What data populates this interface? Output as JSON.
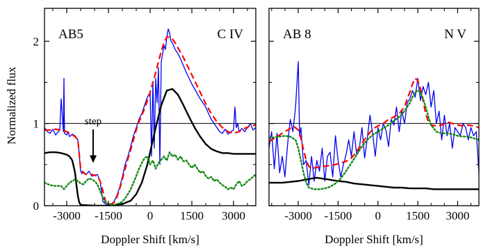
{
  "figure": {
    "ylabel": "Normalized flux",
    "xlabel": "Doppler Shift [km/s]"
  },
  "chart_data": [
    {
      "type": "line",
      "star_label": "AB5",
      "ion_label": "C IV",
      "xlabel": "Doppler Shift [km/s]",
      "ylabel": "Normalized flux",
      "xlim": [
        -3800,
        3800
      ],
      "ylim": [
        0,
        2.4
      ],
      "xticks": [
        -3000,
        -1500,
        0,
        1500,
        3000
      ],
      "xtick_labels": [
        "-3000",
        "-1500",
        "0",
        "1500",
        "3000"
      ],
      "yticks": [
        0,
        1,
        2
      ],
      "ytick_labels": [
        "0",
        "1",
        "2"
      ],
      "reference_line": 1.0,
      "annotation": {
        "text": "step",
        "x": -2050,
        "y": 0.97,
        "arrow_to": [
          -2050,
          0.52
        ]
      },
      "series": [
        {
          "style": "observed",
          "color": "#0000ee",
          "width": 1.3,
          "dash": "",
          "x": [
            -3800,
            -3700,
            -3600,
            -3500,
            -3400,
            -3300,
            -3250,
            -3200,
            -3120,
            -3100,
            -3080,
            -3000,
            -2950,
            -2900,
            -2800,
            -2700,
            -2600,
            -2550,
            -2500,
            -2450,
            -2400,
            -2300,
            -2200,
            -2100,
            -2000,
            -1900,
            -1800,
            -1750,
            -1700,
            -1600,
            -1500,
            -1400,
            -1300,
            -1200,
            -1100,
            -1000,
            -900,
            -800,
            -700,
            -600,
            -500,
            -400,
            -300,
            -200,
            -100,
            0,
            50,
            100,
            150,
            200,
            250,
            300,
            350,
            400,
            450,
            500,
            550,
            600,
            650,
            700,
            750,
            800,
            900,
            1000,
            1100,
            1200,
            1300,
            1400,
            1500,
            1600,
            1700,
            1800,
            1900,
            2000,
            2100,
            2200,
            2300,
            2400,
            2500,
            2600,
            2700,
            2800,
            2900,
            3000,
            3050,
            3100,
            3150,
            3200,
            3300,
            3400,
            3500,
            3600,
            3700,
            3800
          ],
          "y": [
            0.95,
            0.9,
            0.88,
            0.93,
            0.86,
            0.9,
            0.92,
            1.3,
            0.9,
            1.55,
            0.88,
            0.86,
            0.9,
            0.84,
            0.87,
            0.85,
            0.8,
            0.62,
            0.42,
            0.39,
            0.41,
            0.38,
            0.42,
            0.36,
            0.37,
            0.38,
            0.3,
            0.18,
            0.05,
            0.02,
            0.01,
            0.02,
            0.05,
            0.12,
            0.22,
            0.35,
            0.5,
            0.6,
            0.72,
            0.85,
            0.95,
            1.05,
            1.12,
            1.22,
            1.32,
            1.38,
            0.6,
            1.5,
            0.7,
            1.55,
            1.25,
            1.68,
            0.5,
            1.75,
            1.85,
            1.95,
            1.9,
            2.05,
            2.15,
            2.1,
            2.0,
            1.98,
            1.9,
            1.85,
            1.78,
            1.7,
            1.62,
            1.55,
            1.48,
            1.42,
            1.36,
            1.3,
            1.25,
            1.2,
            1.12,
            1.05,
            1.0,
            0.95,
            0.9,
            0.88,
            0.93,
            0.87,
            0.9,
            0.92,
            1.2,
            0.95,
            1.0,
            0.9,
            0.94,
            0.9,
            0.95,
            1.0,
            0.92,
            0.95
          ]
        },
        {
          "style": "model-total",
          "color": "#ff0000",
          "width": 2.2,
          "dash": "9,5",
          "x": [
            -3800,
            -3600,
            -3400,
            -3200,
            -3000,
            -2900,
            -2800,
            -2700,
            -2600,
            -2500,
            -2400,
            -2300,
            -2200,
            -2100,
            -2000,
            -1900,
            -1800,
            -1700,
            -1600,
            -1500,
            -1400,
            -1300,
            -1200,
            -1100,
            -1000,
            -900,
            -800,
            -700,
            -600,
            -500,
            -400,
            -300,
            -200,
            -100,
            0,
            100,
            200,
            300,
            400,
            500,
            600,
            700,
            800,
            900,
            1000,
            1200,
            1400,
            1600,
            1800,
            2000,
            2200,
            2400,
            2600,
            2800,
            3000,
            3200,
            3400,
            3600,
            3800
          ],
          "y": [
            0.92,
            0.92,
            0.93,
            0.92,
            0.9,
            0.88,
            0.86,
            0.84,
            0.8,
            0.45,
            0.4,
            0.38,
            0.38,
            0.38,
            0.37,
            0.36,
            0.3,
            0.18,
            0.05,
            0.02,
            0.02,
            0.04,
            0.1,
            0.2,
            0.32,
            0.45,
            0.57,
            0.68,
            0.8,
            0.92,
            1.02,
            1.1,
            1.18,
            1.28,
            1.38,
            1.5,
            1.62,
            1.75,
            1.88,
            1.98,
            2.05,
            2.05,
            2.03,
            1.98,
            1.92,
            1.8,
            1.66,
            1.52,
            1.38,
            1.24,
            1.12,
            1.02,
            0.95,
            0.9,
            0.88,
            0.9,
            0.94,
            0.97,
            0.98
          ]
        },
        {
          "style": "model-component",
          "color": "#000000",
          "width": 2.4,
          "dash": "",
          "x": [
            -3800,
            -3600,
            -3400,
            -3200,
            -3000,
            -2900,
            -2800,
            -2700,
            -2650,
            -2600,
            -2550,
            -2500,
            -2000,
            -1500,
            -1000,
            -700,
            -500,
            -300,
            -100,
            0,
            200,
            400,
            600,
            800,
            1000,
            1200,
            1400,
            1600,
            1800,
            2000,
            2200,
            2400,
            2600,
            2800,
            3000,
            3200,
            3400,
            3600,
            3800
          ],
          "y": [
            0.64,
            0.65,
            0.65,
            0.64,
            0.62,
            0.6,
            0.55,
            0.4,
            0.25,
            0.12,
            0.04,
            0.01,
            0.0,
            0.0,
            0.02,
            0.06,
            0.14,
            0.28,
            0.5,
            0.65,
            0.95,
            1.22,
            1.4,
            1.42,
            1.35,
            1.22,
            1.08,
            0.95,
            0.84,
            0.75,
            0.69,
            0.66,
            0.64,
            0.64,
            0.63,
            0.63,
            0.63,
            0.63,
            0.63
          ]
        },
        {
          "style": "model-component-2",
          "color": "#118811",
          "width": 2.4,
          "dash": "2,3",
          "x": [
            -3800,
            -3600,
            -3400,
            -3200,
            -3100,
            -3000,
            -2900,
            -2800,
            -2700,
            -2600,
            -2500,
            -2400,
            -2300,
            -2200,
            -2100,
            -2000,
            -1900,
            -1800,
            -1700,
            -1600,
            -1500,
            -1400,
            -1300,
            -1200,
            -1100,
            -1000,
            -900,
            -800,
            -700,
            -600,
            -500,
            -400,
            -300,
            -200,
            -100,
            0,
            100,
            200,
            300,
            400,
            500,
            600,
            700,
            800,
            900,
            1000,
            1100,
            1200,
            1300,
            1400,
            1500,
            1600,
            1700,
            1800,
            1900,
            2000,
            2100,
            2200,
            2300,
            2400,
            2500,
            2600,
            2700,
            2800,
            2900,
            3000,
            3100,
            3200,
            3300,
            3400,
            3500,
            3600,
            3700,
            3800
          ],
          "y": [
            0.28,
            0.25,
            0.24,
            0.24,
            0.2,
            0.24,
            0.28,
            0.3,
            0.32,
            0.3,
            0.27,
            0.26,
            0.3,
            0.33,
            0.32,
            0.3,
            0.26,
            0.18,
            0.1,
            0.04,
            0.02,
            0.01,
            0.01,
            0.02,
            0.03,
            0.05,
            0.09,
            0.14,
            0.2,
            0.28,
            0.36,
            0.45,
            0.52,
            0.58,
            0.6,
            0.5,
            0.55,
            0.45,
            0.52,
            0.56,
            0.6,
            0.55,
            0.65,
            0.6,
            0.62,
            0.56,
            0.6,
            0.54,
            0.55,
            0.5,
            0.46,
            0.5,
            0.45,
            0.4,
            0.42,
            0.36,
            0.33,
            0.35,
            0.3,
            0.32,
            0.28,
            0.25,
            0.23,
            0.2,
            0.22,
            0.2,
            0.26,
            0.3,
            0.24,
            0.26,
            0.3,
            0.32,
            0.35,
            0.38
          ]
        }
      ]
    },
    {
      "type": "line",
      "star_label": "AB 8",
      "ion_label": "N V",
      "xlabel": "Doppler Shift [km/s]",
      "ylabel": "",
      "xlim": [
        -4100,
        3800
      ],
      "ylim": [
        0,
        2.4
      ],
      "xticks": [
        -3000,
        -1500,
        0,
        1500,
        3000
      ],
      "xtick_labels": [
        "-3000",
        "-1500",
        "0",
        "1500",
        "3000"
      ],
      "yticks": [
        0,
        1,
        2
      ],
      "ytick_labels": [],
      "reference_line": 1.0,
      "series": [
        {
          "style": "observed",
          "color": "#0000ee",
          "width": 1.3,
          "dash": "",
          "x": [
            -4100,
            -4000,
            -3900,
            -3800,
            -3700,
            -3600,
            -3500,
            -3400,
            -3300,
            -3200,
            -3100,
            -3000,
            -2950,
            -2900,
            -2800,
            -2700,
            -2600,
            -2500,
            -2400,
            -2300,
            -2200,
            -2100,
            -2000,
            -1900,
            -1800,
            -1700,
            -1600,
            -1500,
            -1400,
            -1300,
            -1200,
            -1100,
            -1000,
            -900,
            -800,
            -700,
            -600,
            -500,
            -400,
            -300,
            -200,
            -100,
            0,
            100,
            200,
            300,
            400,
            500,
            600,
            700,
            800,
            900,
            1000,
            1100,
            1200,
            1300,
            1400,
            1500,
            1600,
            1700,
            1800,
            1900,
            2000,
            2100,
            2200,
            2300,
            2400,
            2500,
            2600,
            2700,
            2800,
            2900,
            3000,
            3100,
            3200,
            3300,
            3400,
            3500,
            3600,
            3700,
            3800
          ],
          "y": [
            0.7,
            0.9,
            0.45,
            0.88,
            0.4,
            0.6,
            0.35,
            0.75,
            1.05,
            0.9,
            1.2,
            1.75,
            0.85,
            0.95,
            0.5,
            0.55,
            0.25,
            0.6,
            0.3,
            0.55,
            0.42,
            0.7,
            0.3,
            0.6,
            0.65,
            0.35,
            0.85,
            0.55,
            0.35,
            0.5,
            0.62,
            0.8,
            0.6,
            0.9,
            0.62,
            0.7,
            0.95,
            0.58,
            0.82,
            1.1,
            0.88,
            0.6,
            0.95,
            0.8,
            1.0,
            0.92,
            0.72,
            1.05,
            0.98,
            1.2,
            0.9,
            1.15,
            1.0,
            1.25,
            1.3,
            1.4,
            1.32,
            1.55,
            1.28,
            1.45,
            1.35,
            1.5,
            1.2,
            1.4,
            1.0,
            1.15,
            0.8,
            1.1,
            0.85,
            1.0,
            0.7,
            0.95,
            0.9,
            0.85,
            1.0,
            0.95,
            0.8,
            0.95,
            0.85,
            0.9,
            0.4
          ]
        },
        {
          "style": "model-total",
          "color": "#ff0000",
          "width": 2.2,
          "dash": "9,5",
          "x": [
            -4100,
            -3900,
            -3700,
            -3500,
            -3300,
            -3150,
            -3000,
            -2900,
            -2800,
            -2700,
            -2600,
            -2500,
            -2400,
            -2200,
            -2000,
            -1800,
            -1600,
            -1400,
            -1200,
            -1000,
            -800,
            -600,
            -400,
            -200,
            0,
            200,
            400,
            600,
            800,
            1000,
            1100,
            1200,
            1300,
            1400,
            1500,
            1600,
            1700,
            1800,
            1900,
            2000,
            2200,
            2400,
            2600,
            2800,
            3000,
            3200,
            3400,
            3600,
            3800
          ],
          "y": [
            0.78,
            0.82,
            0.86,
            0.9,
            0.94,
            0.96,
            0.92,
            0.82,
            0.68,
            0.55,
            0.48,
            0.45,
            0.46,
            0.47,
            0.48,
            0.49,
            0.5,
            0.52,
            0.54,
            0.58,
            0.66,
            0.76,
            0.85,
            0.93,
            0.97,
            1.0,
            1.05,
            1.08,
            1.12,
            1.2,
            1.3,
            1.38,
            1.48,
            1.55,
            1.52,
            1.42,
            1.28,
            1.12,
            1.02,
            0.98,
            0.97,
            0.98,
            1.02,
            1.0,
            0.98,
            0.97,
            0.98,
            0.97,
            0.95
          ]
        },
        {
          "style": "model-component",
          "color": "#000000",
          "width": 2.4,
          "dash": "",
          "x": [
            -4100,
            -3600,
            -3000,
            -2500,
            -2300,
            -2100,
            -1900,
            -1700,
            -1500,
            -1200,
            -900,
            -600,
            -300,
            0,
            300,
            600,
            900,
            1200,
            1500,
            1800,
            2100,
            2400,
            2700,
            3000,
            3300,
            3600,
            3800
          ],
          "y": [
            0.28,
            0.28,
            0.3,
            0.33,
            0.34,
            0.33,
            0.32,
            0.31,
            0.3,
            0.29,
            0.27,
            0.26,
            0.25,
            0.24,
            0.23,
            0.22,
            0.22,
            0.21,
            0.21,
            0.21,
            0.2,
            0.2,
            0.2,
            0.2,
            0.2,
            0.2,
            0.2
          ]
        },
        {
          "style": "model-component-2",
          "color": "#118811",
          "width": 2.4,
          "dash": "2,3",
          "x": [
            -4100,
            -3900,
            -3700,
            -3500,
            -3300,
            -3100,
            -3000,
            -2900,
            -2800,
            -2700,
            -2600,
            -2400,
            -2200,
            -2000,
            -1800,
            -1600,
            -1400,
            -1200,
            -1000,
            -800,
            -600,
            -400,
            -200,
            0,
            200,
            400,
            600,
            800,
            1000,
            1200,
            1300,
            1400,
            1500,
            1600,
            1700,
            1800,
            1900,
            2000,
            2200,
            2400,
            2600,
            2800,
            3000,
            3200,
            3400,
            3600,
            3800
          ],
          "y": [
            0.83,
            0.83,
            0.84,
            0.85,
            0.84,
            0.8,
            0.7,
            0.55,
            0.4,
            0.28,
            0.22,
            0.2,
            0.2,
            0.21,
            0.23,
            0.27,
            0.33,
            0.42,
            0.52,
            0.62,
            0.72,
            0.8,
            0.86,
            0.9,
            0.94,
            0.98,
            1.03,
            1.08,
            1.15,
            1.25,
            1.32,
            1.38,
            1.4,
            1.38,
            1.3,
            1.2,
            1.08,
            0.98,
            0.9,
            0.88,
            0.88,
            0.87,
            0.85,
            0.84,
            0.84,
            0.82,
            0.8
          ]
        }
      ]
    }
  ]
}
